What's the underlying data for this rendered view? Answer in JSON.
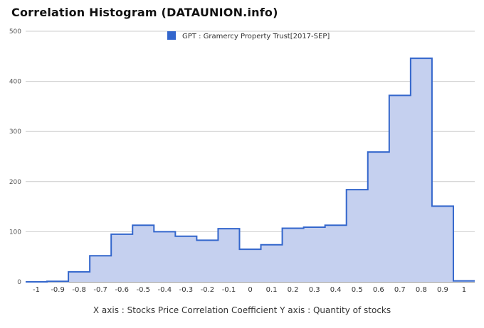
{
  "title": "Correlation Histogram (DATAUNION.info)",
  "chart_data": {
    "type": "area",
    "title": "Correlation Histogram (DATAUNION.info)",
    "xlabel": "X axis : Stocks Price Correlation Coefficient  Y axis : Quantity of stocks",
    "ylabel": "",
    "legend_position": "top",
    "grid": true,
    "color": "#3366cc",
    "fill_color": "#c5d0ef",
    "xlim": [
      -1.05,
      1.05
    ],
    "ylim": [
      0,
      500
    ],
    "y_ticks": [
      0,
      100,
      200,
      300,
      400,
      500
    ],
    "x_ticks": [
      "-1",
      "-0.9",
      "-0.8",
      "-0.7",
      "-0.6",
      "-0.5",
      "-0.4",
      "-0.3",
      "-0.2",
      "-0.1",
      "0",
      "0.1",
      "0.2",
      "0.3",
      "0.4",
      "0.5",
      "0.6",
      "0.7",
      "0.8",
      "0.9",
      "1"
    ],
    "series": [
      {
        "name": "GPT : Gramercy Property Trust[2017-SEP]",
        "x": [
          -1,
          -0.9,
          -0.8,
          -0.7,
          -0.6,
          -0.5,
          -0.4,
          -0.3,
          -0.2,
          -0.1,
          0,
          0.1,
          0.2,
          0.3,
          0.4,
          0.5,
          0.6,
          0.7,
          0.8,
          0.9,
          1
        ],
        "values": [
          0,
          1,
          20,
          52,
          95,
          113,
          100,
          91,
          83,
          106,
          65,
          74,
          107,
          109,
          113,
          184,
          259,
          372,
          446,
          151,
          2
        ]
      }
    ]
  }
}
